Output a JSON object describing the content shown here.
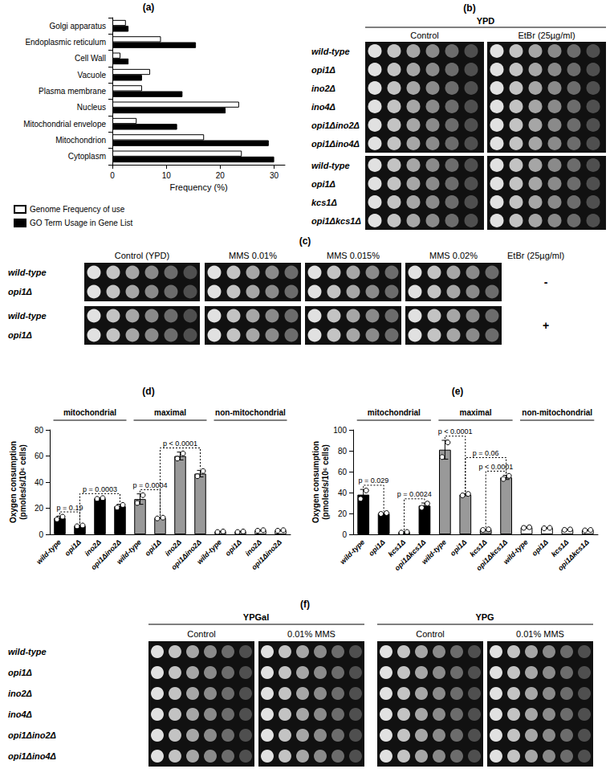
{
  "chart_data": [
    {
      "panel": "(a)",
      "type": "bar",
      "orientation": "horizontal",
      "categories": [
        "Golgi apparatus",
        "Endoplasmic reticulum",
        "Cell Wall",
        "Vacuole",
        "Plasma membrane",
        "Nucleus",
        "Mitochondrial envelope",
        "Mitochondrion",
        "Cytoplasm"
      ],
      "series": [
        {
          "name": "Genome Frequency of use",
          "color": "#ffffff",
          "values": [
            2.5,
            9,
            1.5,
            7,
            5.5,
            23.5,
            4.5,
            17,
            24
          ]
        },
        {
          "name": "GO Term Usage in Gene List",
          "color": "#000000",
          "values": [
            3,
            15.5,
            3,
            5.5,
            13,
            21,
            12,
            29,
            30
          ]
        }
      ],
      "xlabel": "Frequency (%)",
      "xlim": [
        0,
        32
      ],
      "xticks": [
        0,
        10,
        20,
        30
      ],
      "grid": false,
      "legend": "bottom-left"
    },
    {
      "panel": "(d)",
      "type": "bar",
      "categories": [
        "wild-type",
        "opi1Δ",
        "ino2Δ",
        "opi1Δino2Δ"
      ],
      "ylabel": "Oxygen consumption\n(pmoles/s/10⁶ cells)",
      "ylim": [
        0,
        80
      ],
      "yticks": [
        0,
        20,
        40,
        60,
        80
      ],
      "grid": false,
      "series": [
        {
          "name": "mitochondrial",
          "color": "#000000",
          "values": [
            12.5,
            6.5,
            27.5,
            21.5
          ],
          "errors": [
            1.5,
            0.5,
            0.5,
            1.5
          ],
          "points": [
            [
              11.5,
              13.5
            ],
            [
              6.2,
              6.8
            ],
            [
              27.2,
              27.8
            ],
            [
              20.5,
              22.5
            ]
          ]
        },
        {
          "name": "maximal",
          "color": "#999999",
          "values": [
            27,
            12.5,
            60,
            46.5
          ],
          "errors": [
            4,
            0.5,
            3,
            2.5
          ],
          "points": [
            [
              24,
              30
            ],
            [
              12.2,
              12.8
            ],
            [
              58,
              62
            ],
            [
              44.5,
              48.5
            ]
          ]
        },
        {
          "name": "non-mitochondrial",
          "color": "#ffffff",
          "values": [
            2,
            2,
            3,
            3
          ],
          "errors": [
            0.3,
            0.3,
            0.3,
            0.3
          ],
          "points": [
            [
              1.8,
              2.2
            ],
            [
              1.8,
              2.2
            ],
            [
              2.8,
              3.2
            ],
            [
              2.8,
              3.2
            ]
          ]
        }
      ],
      "comparisons": [
        {
          "series": "mitochondrial",
          "from": "wild-type",
          "to": "opi1Δ",
          "label": "p = 0.19"
        },
        {
          "series": "mitochondrial",
          "from": "opi1Δ",
          "to": "opi1Δino2Δ",
          "label": "p = 0.0003"
        },
        {
          "series": "maximal",
          "from": "wild-type",
          "to": "opi1Δ",
          "label": "p = 0.0004"
        },
        {
          "series": "maximal",
          "from": "opi1Δ",
          "to": "opi1Δino2Δ",
          "label": "p < 0.0001"
        }
      ]
    },
    {
      "panel": "(e)",
      "type": "bar",
      "categories": [
        "wild-type",
        "opi1Δ",
        "kcs1Δ",
        "opi1Δkcs1Δ"
      ],
      "ylabel": "Oxygen consumption\n(pmoles/s/10⁶ cells)",
      "ylim": [
        0,
        100
      ],
      "yticks": [
        0,
        20,
        40,
        60,
        80,
        100
      ],
      "grid": false,
      "series": [
        {
          "name": "mitochondrial",
          "color": "#000000",
          "values": [
            38,
            20,
            2,
            27.5
          ],
          "errors": [
            5,
            0.5,
            0.5,
            2.5
          ],
          "points": [
            [
              34,
              42
            ],
            [
              19.6,
              20.4
            ],
            [
              1.7,
              2.3
            ],
            [
              25.5,
              29.5
            ]
          ]
        },
        {
          "name": "maximal",
          "color": "#999999",
          "values": [
            81,
            38,
            4.5,
            54.5
          ],
          "errors": [
            9,
            1,
            0.5,
            2
          ],
          "points": [
            [
              74,
              88
            ],
            [
              37.3,
              38.7
            ],
            [
              4.2,
              4.8
            ],
            [
              53,
              56
            ]
          ]
        },
        {
          "name": "non-mitochondrial",
          "color": "#ffffff",
          "values": [
            6.5,
            6,
            4.5,
            4
          ],
          "errors": [
            0.5,
            0.3,
            0.3,
            0.3
          ],
          "points": [
            [
              6.2,
              6.8
            ],
            [
              5.8,
              6.2
            ],
            [
              4.3,
              4.7
            ],
            [
              3.8,
              4.2
            ]
          ]
        }
      ],
      "comparisons": [
        {
          "series": "mitochondrial",
          "from": "wild-type",
          "to": "opi1Δ",
          "label": "p = 0.029"
        },
        {
          "series": "mitochondrial",
          "from": "kcs1Δ",
          "to": "opi1Δkcs1Δ",
          "label": "p = 0.0024"
        },
        {
          "series": "maximal",
          "from": "wild-type",
          "to": "opi1Δ",
          "label": "p < 0.0001"
        },
        {
          "series": "maximal",
          "from": "opi1Δ",
          "to": "opi1Δkcs1Δ",
          "label": "p = 0.06"
        },
        {
          "series": "maximal",
          "from": "kcs1Δ",
          "to": "opi1Δkcs1Δ",
          "label": "p < 0.0001"
        }
      ]
    }
  ],
  "spot_assays": [
    {
      "panel": "(b)",
      "medium": "YPD",
      "conditions": [
        "Control",
        "EtBr (25µg/ml)"
      ],
      "strain_blocks": [
        [
          "wild-type",
          "opi1Δ",
          "ino2Δ",
          "ino4Δ",
          "opi1Δino2Δ",
          "opi1Δino4Δ"
        ],
        [
          "wild-type",
          "opi1Δ",
          "kcs1Δ",
          "opi1Δkcs1Δ"
        ]
      ]
    },
    {
      "panel": "(c)",
      "conditions": [
        "Control (YPD)",
        "MMS 0.01%",
        "MMS 0.015%",
        "MMS 0.02%"
      ],
      "side_title": "EtBr (25µg/ml)",
      "strain_blocks": [
        [
          "wild-type",
          "opi1Δ"
        ],
        [
          "wild-type",
          "opi1Δ"
        ]
      ],
      "block_marks": [
        "-",
        "+"
      ]
    },
    {
      "panel": "(f)",
      "media": [
        {
          "medium": "YPGal",
          "conditions": [
            "Control",
            "0.01% MMS"
          ]
        },
        {
          "medium": "YPG",
          "conditions": [
            "Control",
            "0.01% MMS"
          ]
        }
      ],
      "strain_blocks": [
        [
          "wild-type",
          "opi1Δ",
          "ino2Δ",
          "ino4Δ",
          "opi1Δino2Δ",
          "opi1Δino4Δ"
        ]
      ]
    }
  ]
}
